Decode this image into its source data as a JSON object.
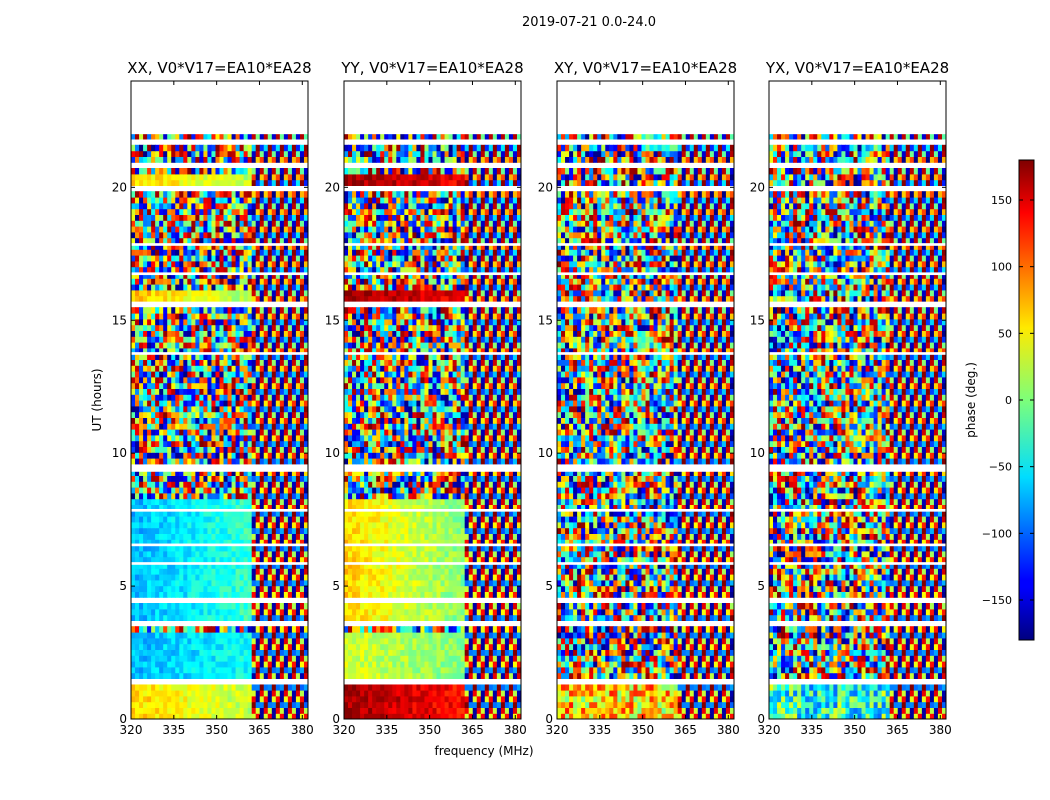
{
  "chart_data": {
    "type": "heatmap",
    "title": "2019-07-21 0.0-24.0",
    "xlabel": "frequency (MHz)",
    "ylabel": "UT (hours)",
    "xlim": [
      320,
      382
    ],
    "ylim": [
      0,
      24
    ],
    "xticks": [
      320,
      335,
      350,
      365,
      380
    ],
    "yticks": [
      0,
      5,
      10,
      15,
      20
    ],
    "panels": [
      {
        "name": "XX, V0*V17=EA10*EA28"
      },
      {
        "name": "YY, V0*V17=EA10*EA28"
      },
      {
        "name": "XY, V0*V17=EA10*EA28"
      },
      {
        "name": "YX, V0*V17=EA10*EA28"
      }
    ],
    "colorbar": {
      "label": "phase (deg.)",
      "range": [
        -180,
        180
      ],
      "ticks": [
        -150,
        -100,
        -50,
        0,
        50,
        100,
        150
      ],
      "tick_labels": [
        "−150",
        "−100",
        "−50",
        "0",
        "50",
        "100",
        "150"
      ],
      "colormap": "jet"
    },
    "data_gaps_hours": [
      [
        22.0,
        24.0
      ],
      [
        1.3,
        1.5
      ],
      [
        3.5,
        3.6
      ],
      [
        4.4,
        4.5
      ],
      [
        5.8,
        5.9
      ],
      [
        6.5,
        6.6
      ],
      [
        7.8,
        7.9
      ],
      [
        9.3,
        9.5
      ],
      [
        13.7,
        13.8
      ],
      [
        15.6,
        15.7
      ],
      [
        16.7,
        16.8
      ],
      [
        17.8,
        17.9
      ],
      [
        19.9,
        20.0
      ],
      [
        20.8,
        20.9
      ],
      [
        21.7,
        21.8
      ]
    ],
    "coherent_segments": {
      "XX": [
        {
          "t": [
            0.0,
            1.3
          ],
          "phase": [
            60,
            20
          ],
          "f_max": 362
        },
        {
          "t": [
            1.5,
            3.2
          ],
          "phase": [
            -70,
            -40
          ],
          "f_max": 362
        },
        {
          "t": [
            3.6,
            8.4
          ],
          "phase": [
            -70,
            -25
          ],
          "f_max": 362
        },
        {
          "t": [
            15.7,
            16.1
          ],
          "phase": [
            70,
            10
          ],
          "f_max": 362
        },
        {
          "t": [
            20.0,
            20.5
          ],
          "phase": [
            60,
            20
          ],
          "f_max": 362
        }
      ],
      "YY": [
        {
          "t": [
            0.0,
            1.3
          ],
          "phase": [
            170,
            130
          ],
          "f_max": 362
        },
        {
          "t": [
            1.5,
            3.2
          ],
          "phase": [
            30,
            0
          ],
          "f_max": 362
        },
        {
          "t": [
            3.6,
            8.4
          ],
          "phase": [
            60,
            0
          ],
          "f_max": 362
        },
        {
          "t": [
            15.7,
            16.1
          ],
          "phase": [
            170,
            140
          ],
          "f_max": 362
        },
        {
          "t": [
            20.0,
            20.6
          ],
          "phase": [
            170,
            140
          ],
          "f_max": 362
        }
      ],
      "XY": [
        {
          "t": [
            0.0,
            1.3
          ],
          "phase": [
            60,
            60
          ],
          "f_max": 362,
          "noisy": true
        }
      ],
      "YX": [
        {
          "t": [
            0.0,
            1.3
          ],
          "phase": [
            -30,
            -30
          ],
          "f_max": 362,
          "noisy": true
        }
      ]
    }
  }
}
